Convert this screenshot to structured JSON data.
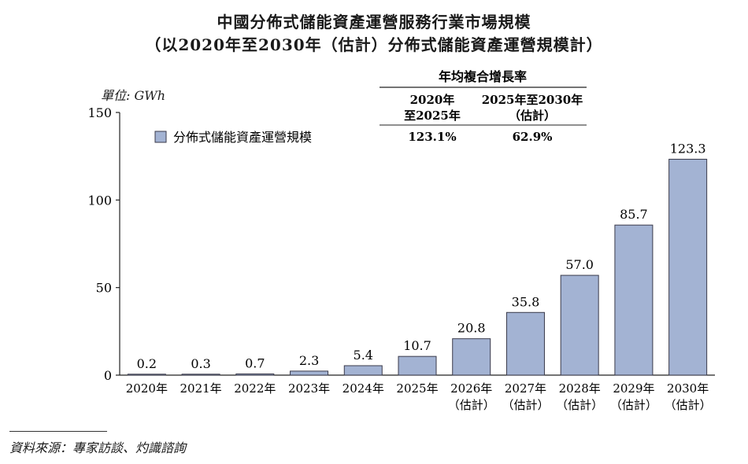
{
  "title": "中國分佈式儲能資產運營服務行業市場規模",
  "subtitle": "（以2020年至2030年（估計）分佈式儲能資產運營規模計）",
  "unit_label": "單位: GWh",
  "source": "資料來源：專家訪談、灼識諮詢",
  "cagr": {
    "header": "年均複合增長率",
    "periods": [
      {
        "label_line1": "2020年",
        "label_line2": "至2025年",
        "value": "123.1%"
      },
      {
        "label_line1": "2025年至2030年",
        "label_line2": "（估計）",
        "value": "62.9%"
      }
    ]
  },
  "colors": {
    "bar_fill": "#a3b3d3",
    "bar_stroke": "#3a3a4a",
    "axis": "#222222"
  },
  "chart_data": {
    "type": "bar",
    "legend": [
      "分佈式儲能資產運營規模"
    ],
    "legend_position": "top-left",
    "categories": [
      "2020年",
      "2021年",
      "2022年",
      "2023年",
      "2024年",
      "2025年",
      "2026年",
      "2027年",
      "2028年",
      "2029年",
      "2030年"
    ],
    "category_sublabels": [
      "",
      "",
      "",
      "",
      "",
      "",
      "（估計）",
      "（估計）",
      "（估計）",
      "（估計）",
      "（估計）"
    ],
    "series": [
      {
        "name": "分佈式儲能資產運營規模",
        "values": [
          0.2,
          0.3,
          0.7,
          2.3,
          5.4,
          10.7,
          20.8,
          35.8,
          57.0,
          85.7,
          123.3
        ],
        "value_labels": [
          "0.2",
          "0.3",
          "0.7",
          "2.3",
          "5.4",
          "10.7",
          "20.8",
          "35.8",
          "57.0",
          "85.7",
          "123.3"
        ]
      }
    ],
    "yticks": [
      0,
      50,
      100,
      150
    ],
    "ylim": [
      0,
      150
    ],
    "grid": false
  }
}
